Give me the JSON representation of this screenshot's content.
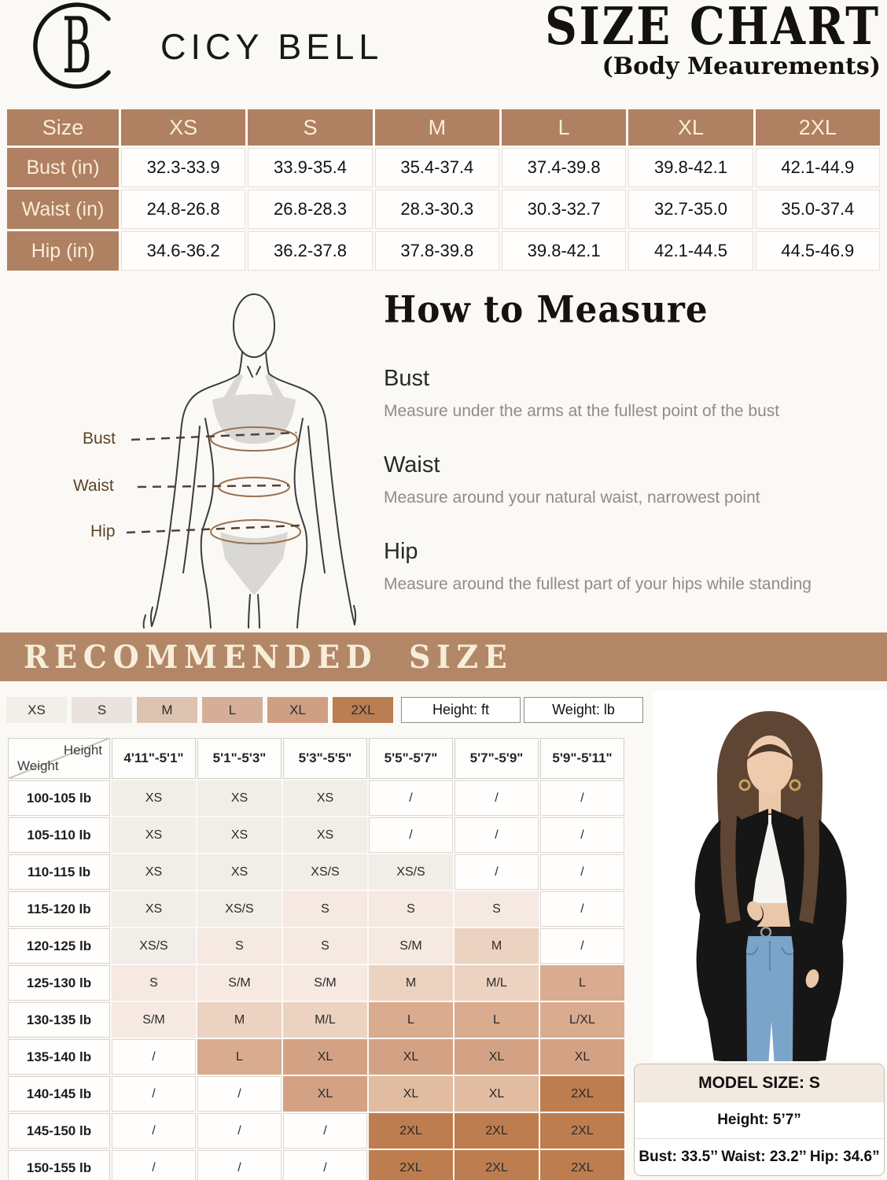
{
  "brand": {
    "name": "CICY BELL"
  },
  "header": {
    "title": "SIZE CHART",
    "subtitle": "(Body Meaurements)"
  },
  "size_table": {
    "columns": [
      "Size",
      "XS",
      "S",
      "M",
      "L",
      "XL",
      "2XL"
    ],
    "rows": [
      {
        "label": "Bust (in)",
        "values": [
          "32.3-33.9",
          "33.9-35.4",
          "35.4-37.4",
          "37.4-39.8",
          "39.8-42.1",
          "42.1-44.9"
        ]
      },
      {
        "label": "Waist (in)",
        "values": [
          "24.8-26.8",
          "26.8-28.3",
          "28.3-30.3",
          "30.3-32.7",
          "32.7-35.0",
          "35.0-37.4"
        ]
      },
      {
        "label": "Hip (in)",
        "values": [
          "34.6-36.2",
          "36.2-37.8",
          "37.8-39.8",
          "39.8-42.1",
          "42.1-44.5",
          "44.5-46.9"
        ]
      }
    ]
  },
  "how_to_measure": {
    "title": "How to Measure",
    "figure_labels": [
      "Bust",
      "Waist",
      "Hip"
    ],
    "sections": [
      {
        "heading": "Bust",
        "text": "Measure under the arms at the fullest point of the bust"
      },
      {
        "heading": "Waist",
        "text": "Measure around your natural waist, narrowest point"
      },
      {
        "heading": "Hip",
        "text": "Measure around the fullest part of your hips while standing"
      }
    ]
  },
  "recommended": {
    "banner": "RECOMMENDED  SIZE",
    "legend": [
      {
        "label": "XS",
        "color": "#f2efe9"
      },
      {
        "label": "S",
        "color": "#eae2dc"
      },
      {
        "label": "M",
        "color": "#ddc3b1"
      },
      {
        "label": "L",
        "color": "#d5ae99"
      },
      {
        "label": "XL",
        "color": "#cf9f83"
      },
      {
        "label": "2XL",
        "color": "#b97e51"
      }
    ],
    "unit_boxes": [
      "Height: ft",
      "Weight: lb"
    ],
    "matrix": {
      "corner_top": "Height",
      "corner_bottom": "Weight",
      "height_columns": [
        "4'11\"-5'1\"",
        "5'1\"-5'3\"",
        "5'3\"-5'5\"",
        "5'5\"-5'7\"",
        "5'7\"-5'9\"",
        "5'9\"-5'11\""
      ],
      "tones": {
        "w": "#fffefd",
        "xs": "#f1ede7",
        "s": "#f5e9e2",
        "m": "#ecd2c0",
        "l": "#d9ab8f",
        "xl": "#d3a284",
        "xll": "#e1bca1",
        "xxl": "#bd7d4f"
      },
      "rows": [
        {
          "weight": "100-105 lb",
          "cells": [
            {
              "v": "XS",
              "t": "xs"
            },
            {
              "v": "XS",
              "t": "xs"
            },
            {
              "v": "XS",
              "t": "xs"
            },
            {
              "v": "/",
              "t": "w"
            },
            {
              "v": "/",
              "t": "w"
            },
            {
              "v": "/",
              "t": "w"
            }
          ]
        },
        {
          "weight": "105-110 lb",
          "cells": [
            {
              "v": "XS",
              "t": "xs"
            },
            {
              "v": "XS",
              "t": "xs"
            },
            {
              "v": "XS",
              "t": "xs"
            },
            {
              "v": "/",
              "t": "w"
            },
            {
              "v": "/",
              "t": "w"
            },
            {
              "v": "/",
              "t": "w"
            }
          ]
        },
        {
          "weight": "110-115 lb",
          "cells": [
            {
              "v": "XS",
              "t": "xs"
            },
            {
              "v": "XS",
              "t": "xs"
            },
            {
              "v": "XS/S",
              "t": "xs"
            },
            {
              "v": "XS/S",
              "t": "xs"
            },
            {
              "v": "/",
              "t": "w"
            },
            {
              "v": "/",
              "t": "w"
            }
          ]
        },
        {
          "weight": "115-120 lb",
          "cells": [
            {
              "v": "XS",
              "t": "xs"
            },
            {
              "v": "XS/S",
              "t": "xs"
            },
            {
              "v": "S",
              "t": "s"
            },
            {
              "v": "S",
              "t": "s"
            },
            {
              "v": "S",
              "t": "s"
            },
            {
              "v": "/",
              "t": "w"
            }
          ]
        },
        {
          "weight": "120-125 lb",
          "cells": [
            {
              "v": "XS/S",
              "t": "xs"
            },
            {
              "v": "S",
              "t": "s"
            },
            {
              "v": "S",
              "t": "s"
            },
            {
              "v": "S/M",
              "t": "s"
            },
            {
              "v": "M",
              "t": "m"
            },
            {
              "v": "/",
              "t": "w"
            }
          ]
        },
        {
          "weight": "125-130 lb",
          "cells": [
            {
              "v": "S",
              "t": "s"
            },
            {
              "v": "S/M",
              "t": "s"
            },
            {
              "v": "S/M",
              "t": "s"
            },
            {
              "v": "M",
              "t": "m"
            },
            {
              "v": "M/L",
              "t": "m"
            },
            {
              "v": "L",
              "t": "l"
            }
          ]
        },
        {
          "weight": "130-135 lb",
          "cells": [
            {
              "v": "S/M",
              "t": "s"
            },
            {
              "v": "M",
              "t": "m"
            },
            {
              "v": "M/L",
              "t": "m"
            },
            {
              "v": "L",
              "t": "l"
            },
            {
              "v": "L",
              "t": "l"
            },
            {
              "v": "L/XL",
              "t": "l"
            }
          ]
        },
        {
          "weight": "135-140 lb",
          "cells": [
            {
              "v": "/",
              "t": "w"
            },
            {
              "v": "L",
              "t": "l"
            },
            {
              "v": "XL",
              "t": "xl"
            },
            {
              "v": "XL",
              "t": "xl"
            },
            {
              "v": "XL",
              "t": "xl"
            },
            {
              "v": "XL",
              "t": "xl"
            }
          ]
        },
        {
          "weight": "140-145 lb",
          "cells": [
            {
              "v": "/",
              "t": "w"
            },
            {
              "v": "/",
              "t": "w"
            },
            {
              "v": "XL",
              "t": "xl"
            },
            {
              "v": "XL",
              "t": "xll"
            },
            {
              "v": "XL",
              "t": "xll"
            },
            {
              "v": "2XL",
              "t": "xxl"
            }
          ]
        },
        {
          "weight": "145-150 lb",
          "cells": [
            {
              "v": "/",
              "t": "w"
            },
            {
              "v": "/",
              "t": "w"
            },
            {
              "v": "/",
              "t": "w"
            },
            {
              "v": "2XL",
              "t": "xxl"
            },
            {
              "v": "2XL",
              "t": "xxl"
            },
            {
              "v": "2XL",
              "t": "xxl"
            }
          ]
        },
        {
          "weight": "150-155 lb",
          "cells": [
            {
              "v": "/",
              "t": "w"
            },
            {
              "v": "/",
              "t": "w"
            },
            {
              "v": "/",
              "t": "w"
            },
            {
              "v": "2XL",
              "t": "xxl"
            },
            {
              "v": "2XL",
              "t": "xxl"
            },
            {
              "v": "2XL",
              "t": "xxl"
            }
          ]
        }
      ]
    }
  },
  "model": {
    "size_label": "MODEL SIZE: S",
    "height": "Height: 5’7”",
    "measurements": "Bust: 33.5’’ Waist: 23.2’’ Hip: 34.6”"
  },
  "colors": {
    "table_brown": "#af8061",
    "banner_brown": "#b28768",
    "cream_text": "#f7eed9",
    "figure_line_brown": "#9b7250"
  }
}
